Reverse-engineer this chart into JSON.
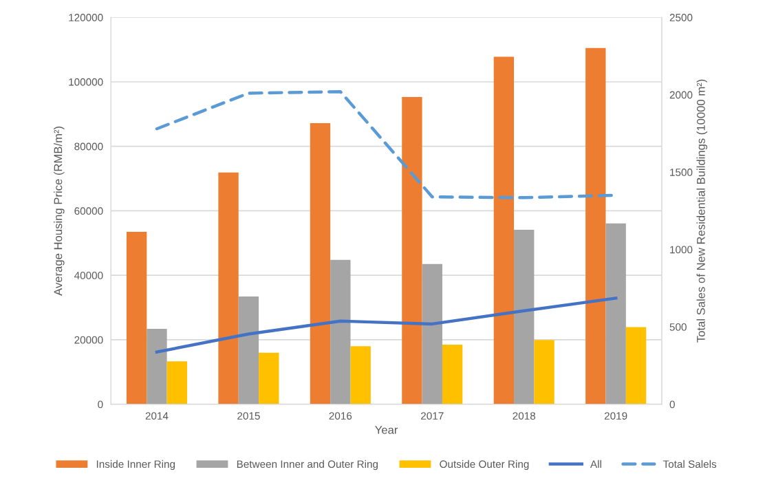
{
  "chart_data": {
    "type": "bar",
    "xlabel": "Year",
    "ylabel": "Average Housing Price (RMB/m²)",
    "y2label": "Total Sales of New Residential Buildings (10000 m²)",
    "categories": [
      "2014",
      "2015",
      "2016",
      "2017",
      "2018",
      "2019"
    ],
    "series": [
      {
        "name": "Inside Inner Ring",
        "color": "#ed7d31",
        "values": [
          53500,
          71900,
          87200,
          95300,
          107800,
          110500
        ]
      },
      {
        "name": "Between Inner and Outer Ring",
        "color": "#a5a5a5",
        "values": [
          23400,
          33400,
          44800,
          43500,
          54100,
          56100
        ]
      },
      {
        "name": "Outside Outer Ring",
        "color": "#ffc000",
        "values": [
          13300,
          16000,
          18000,
          18500,
          19900,
          23900
        ]
      },
      {
        "name": "All",
        "type": "line",
        "color": "#4472c4",
        "line_style": "solid",
        "values": [
          16200,
          21800,
          25800,
          24900,
          29000,
          32900
        ]
      },
      {
        "name": "Total Salels",
        "type": "line",
        "axis": "y2",
        "color": "#5b9bd5",
        "line_style": "dashed",
        "values": [
          1780,
          2010,
          2020,
          1340,
          1335,
          1350
        ]
      }
    ],
    "ylim": [
      0,
      120000
    ],
    "yticks": [
      0,
      20000,
      40000,
      60000,
      80000,
      100000,
      120000
    ],
    "y2lim": [
      0,
      2500
    ],
    "y2ticks": [
      0,
      500,
      1000,
      1500,
      2000,
      2500
    ],
    "grid": "y",
    "legend": "bottom"
  }
}
